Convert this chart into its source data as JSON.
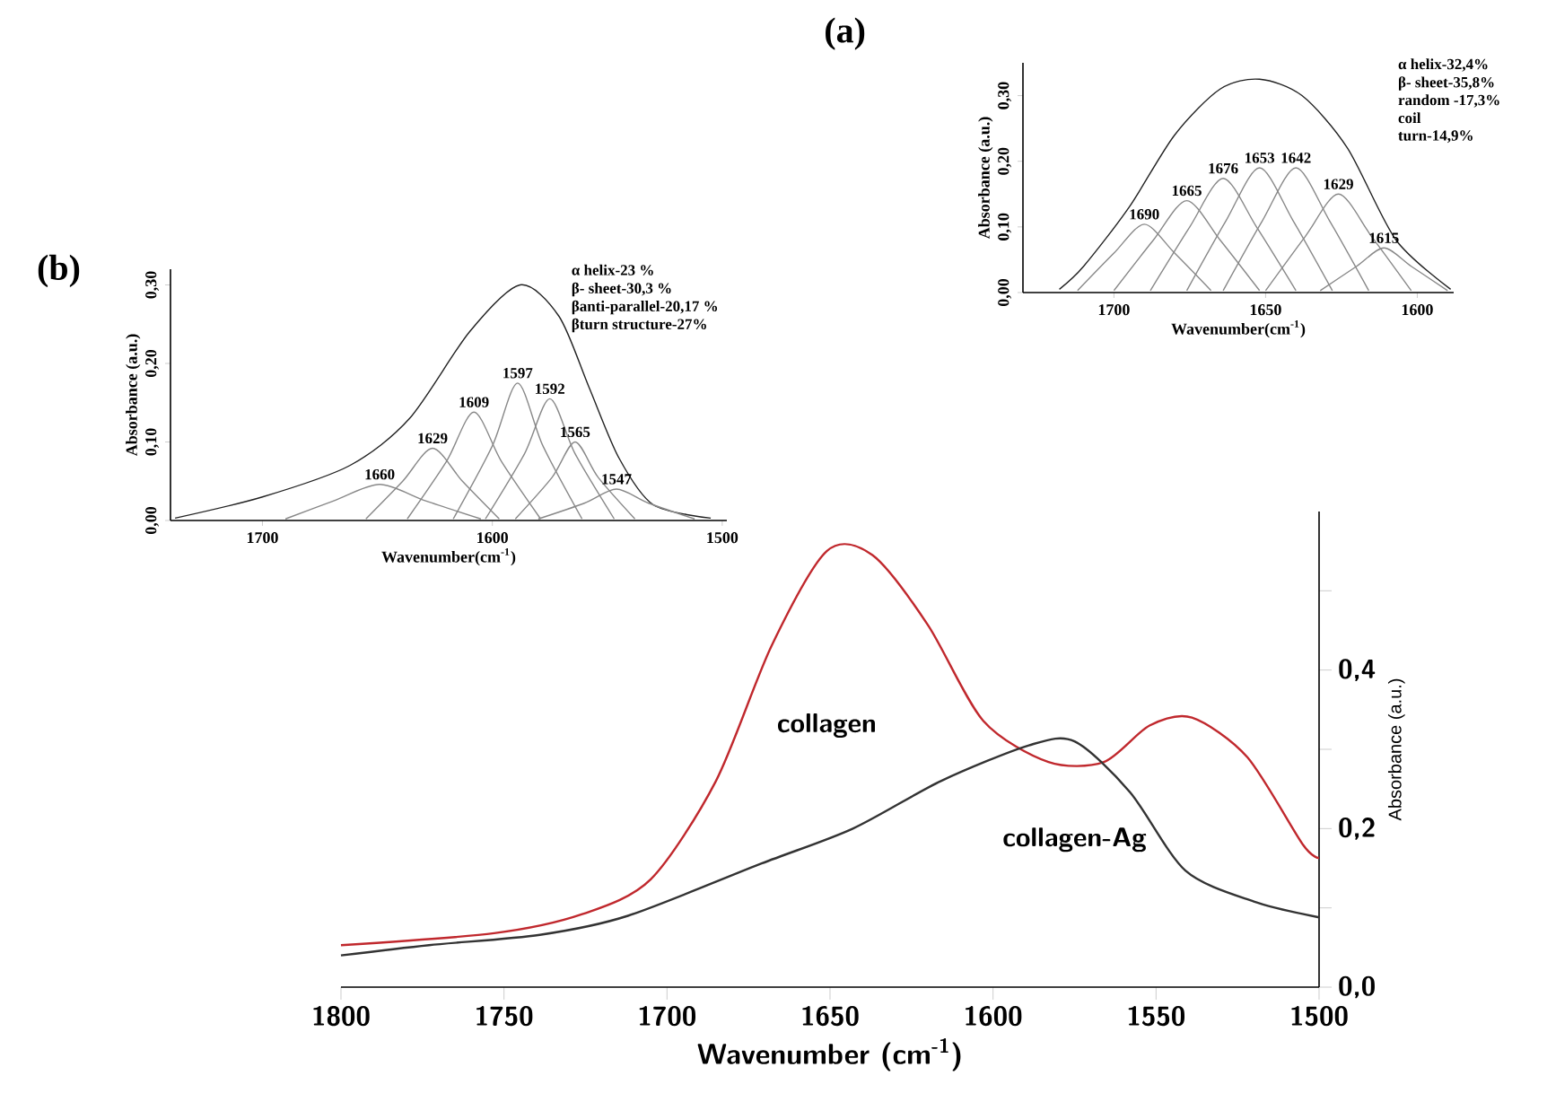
{
  "chart_data": [
    {
      "type": "line",
      "xlabel": "Wavenumber (cm$^{-1}$)",
      "ylabel": "Absorbance (a.u.)",
      "xlim": [
        1800,
        1500
      ],
      "xticks": [
        1800,
        1750,
        1700,
        1650,
        1600,
        1550,
        1500
      ],
      "ylim": [
        0,
        0.6
      ],
      "yticks": [
        {
          "value": 0,
          "label": "0,0"
        },
        {
          "value": 0.1,
          "label": null
        },
        {
          "value": 0.2,
          "label": "0,2"
        },
        {
          "value": 0.3,
          "label": null
        },
        {
          "value": 0.4,
          "label": "0,4"
        },
        {
          "value": 0.5,
          "label": null
        }
      ],
      "series": [
        {
          "name": "collagen",
          "color": "#c0282d",
          "x": [
            1800,
            1753,
            1726,
            1705,
            1685,
            1668,
            1651,
            1637,
            1620,
            1603,
            1583,
            1566,
            1552,
            1539,
            1522,
            1505,
            1500
          ],
          "values": [
            0.053,
            0.068,
            0.092,
            0.136,
            0.26,
            0.43,
            0.55,
            0.545,
            0.457,
            0.336,
            0.284,
            0.284,
            0.33,
            0.34,
            0.29,
            0.18,
            0.163
          ]
        },
        {
          "name": "collagen-Ag",
          "color": "#333333",
          "x": [
            1800,
            1773,
            1739,
            1712,
            1671,
            1643,
            1616,
            1589,
            1575,
            1558,
            1541,
            1520,
            1500
          ],
          "values": [
            0.04,
            0.053,
            0.066,
            0.09,
            0.156,
            0.2,
            0.26,
            0.305,
            0.31,
            0.246,
            0.147,
            0.108,
            0.088
          ]
        }
      ]
    },
    {
      "type": "line",
      "title": "(b)",
      "xlabel": "Wavenumber(cm$^{-1}$)",
      "ylabel": "Absorbance (a.u.)",
      "xlim": [
        1740,
        1498
      ],
      "xticks": [
        1700,
        1600,
        1500
      ],
      "ylim": [
        0,
        0.32
      ],
      "yticks": [
        {
          "value": 0,
          "label": "0,00"
        },
        {
          "value": 0.1,
          "label": "0,10"
        },
        {
          "value": 0.2,
          "label": "0,20"
        },
        {
          "value": 0.3,
          "label": "0,30"
        }
      ],
      "annotations": [
        "α helix-23 %",
        "β- sheet-30,3 %",
        "βanti-parallel-20,17 %",
        "βturn structure-27%",
        {
          "text": "1660",
          "x": 1649,
          "y": 0.046
        },
        {
          "text": "1629",
          "x": 1626,
          "y": 0.092
        },
        {
          "text": "1609",
          "x": 1608,
          "y": 0.138
        },
        {
          "text": "1597",
          "x": 1589,
          "y": 0.175
        },
        {
          "text": "1592",
          "x": 1575,
          "y": 0.155
        },
        {
          "text": "1565",
          "x": 1564,
          "y": 0.1
        },
        {
          "text": "1547",
          "x": 1546,
          "y": 0.04
        }
      ],
      "series": [
        {
          "color": "#222222",
          "x": [
            1738,
            1700,
            1662,
            1636,
            1610,
            1588,
            1571,
            1558,
            1545,
            1530,
            1505
          ],
          "values": [
            0.003,
            0.03,
            0.07,
            0.13,
            0.24,
            0.3,
            0.26,
            0.17,
            0.08,
            0.02,
            0.003
          ]
        },
        {
          "color": "#888888",
          "x": [
            1690,
            1669,
            1649,
            1629,
            1605
          ],
          "values": [
            0.002,
            0.025,
            0.046,
            0.025,
            0.002
          ]
        },
        {
          "color": "#888888",
          "x": [
            1655,
            1639,
            1626,
            1613,
            1597
          ],
          "values": [
            0.002,
            0.05,
            0.092,
            0.05,
            0.002
          ]
        },
        {
          "color": "#888888",
          "x": [
            1637,
            1620,
            1608,
            1596,
            1579
          ],
          "values": [
            0.002,
            0.075,
            0.138,
            0.075,
            0.002
          ]
        },
        {
          "color": "#888888",
          "x": [
            1617,
            1600,
            1589,
            1578,
            1561
          ],
          "values": [
            0.002,
            0.095,
            0.175,
            0.095,
            0.002
          ]
        },
        {
          "color": "#888888",
          "x": [
            1603,
            1586,
            1575,
            1564,
            1547
          ],
          "values": [
            0.002,
            0.085,
            0.155,
            0.085,
            0.002
          ]
        },
        {
          "color": "#888888",
          "x": [
            1590,
            1574,
            1564,
            1554,
            1538
          ],
          "values": [
            0.002,
            0.055,
            0.1,
            0.055,
            0.002
          ]
        },
        {
          "color": "#888888",
          "x": [
            1580,
            1560,
            1546,
            1532,
            1512
          ],
          "values": [
            0.002,
            0.022,
            0.04,
            0.022,
            0.002
          ]
        }
      ]
    },
    {
      "type": "line",
      "title": "(a)",
      "xlabel": "Wavenumber(cm$^{-1}$)",
      "ylabel": "Absorbance (a.u.)",
      "xlim": [
        1730,
        1588
      ],
      "xticks": [
        1700,
        1650,
        1600
      ],
      "ylim": [
        0,
        0.35
      ],
      "yticks": [
        {
          "value": 0,
          "label": "0,00"
        },
        {
          "value": 0.1,
          "label": "0,10"
        },
        {
          "value": 0.2,
          "label": "0,20"
        },
        {
          "value": 0.3,
          "label": "0,30"
        }
      ],
      "annotations": [
        "α helix-32,4%",
        "β- sheet-35,8%",
        "random -17,3%",
        "coil",
        "turn-14,9%",
        {
          "text": "1690",
          "x": 1690,
          "y": 0.104
        },
        {
          "text": "1665",
          "x": 1676,
          "y": 0.14
        },
        {
          "text": "1676",
          "x": 1664,
          "y": 0.174
        },
        {
          "text": "1653",
          "x": 1652,
          "y": 0.19
        },
        {
          "text": "1642",
          "x": 1640,
          "y": 0.19
        },
        {
          "text": "1629",
          "x": 1626,
          "y": 0.15
        },
        {
          "text": "1615",
          "x": 1611,
          "y": 0.068
        }
      ],
      "series": [
        {
          "color": "#222222",
          "x": [
            1718,
            1710,
            1695,
            1680,
            1665,
            1652,
            1638,
            1623,
            1607,
            1589
          ],
          "values": [
            0.005,
            0.04,
            0.13,
            0.24,
            0.31,
            0.325,
            0.3,
            0.22,
            0.08,
            0.005
          ]
        },
        {
          "color": "#888888",
          "x": [
            1712,
            1700,
            1690,
            1680,
            1668
          ],
          "values": [
            0.003,
            0.06,
            0.104,
            0.06,
            0.003
          ]
        },
        {
          "color": "#888888",
          "x": [
            1700,
            1687,
            1676,
            1665,
            1652
          ],
          "values": [
            0.003,
            0.08,
            0.14,
            0.08,
            0.003
          ]
        },
        {
          "color": "#888888",
          "x": [
            1688,
            1675,
            1664,
            1653,
            1640
          ],
          "values": [
            0.003,
            0.1,
            0.174,
            0.1,
            0.003
          ]
        },
        {
          "color": "#888888",
          "x": [
            1676,
            1663,
            1652,
            1641,
            1628
          ],
          "values": [
            0.003,
            0.11,
            0.19,
            0.11,
            0.003
          ]
        },
        {
          "color": "#888888",
          "x": [
            1664,
            1651,
            1640,
            1629,
            1616
          ],
          "values": [
            0.003,
            0.11,
            0.19,
            0.11,
            0.003
          ]
        },
        {
          "color": "#888888",
          "x": [
            1650,
            1637,
            1626,
            1615,
            1602
          ],
          "values": [
            0.003,
            0.085,
            0.15,
            0.085,
            0.003
          ]
        },
        {
          "color": "#888888",
          "x": [
            1632,
            1620,
            1611,
            1602,
            1590
          ],
          "values": [
            0.003,
            0.04,
            0.068,
            0.04,
            0.003
          ]
        }
      ]
    }
  ]
}
